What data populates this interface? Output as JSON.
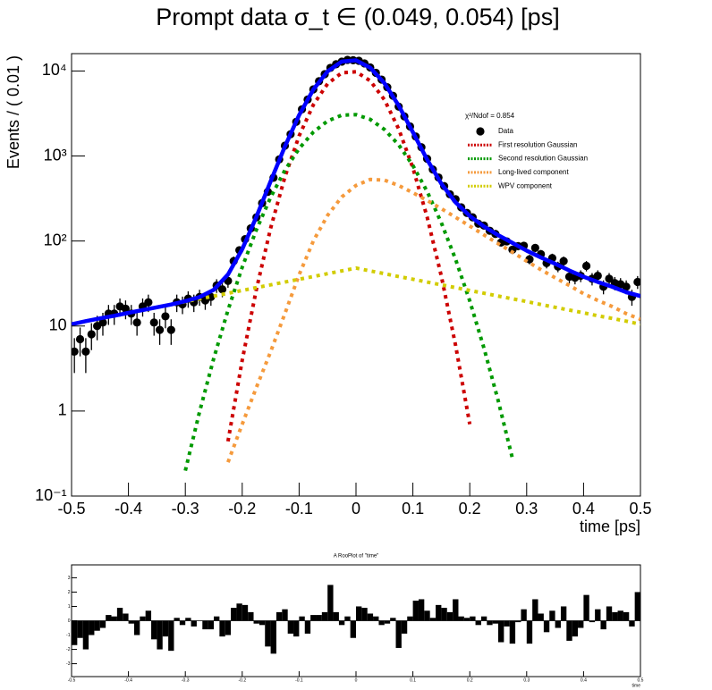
{
  "chart_data": [
    {
      "type": "line",
      "title": "Prompt data σ_t ∈ (0.049, 0.054) [ps]",
      "x_label": "time [ps]",
      "y_label": "Events / ( 0.01 )",
      "annotation": "χ²/Ndof = 0.854",
      "legend": "upper right",
      "log_y": true,
      "xlim": [
        -0.5,
        0.5
      ],
      "ylim": [
        0.1,
        16000
      ],
      "xticks": [
        -0.5,
        -0.4,
        -0.3,
        -0.2,
        -0.1,
        0,
        0.1,
        0.2,
        0.3,
        0.4,
        0.5
      ],
      "yticks": [
        {
          "value": 0.1,
          "label": "10⁻¹"
        },
        1,
        10,
        {
          "value": 100,
          "label": "10²"
        },
        {
          "value": 1000,
          "label": "10³"
        },
        {
          "value": 10000,
          "label": "10⁴"
        }
      ],
      "series": [
        {
          "name": "Data",
          "style": "points",
          "color": "#000000",
          "x": [
            -0.495,
            -0.485,
            -0.475,
            -0.465,
            -0.455,
            -0.445,
            -0.435,
            -0.425,
            -0.415,
            -0.405,
            -0.395,
            -0.385,
            -0.375,
            -0.365,
            -0.355,
            -0.345,
            -0.335,
            -0.325,
            -0.315,
            -0.305,
            -0.295,
            -0.285,
            -0.275,
            -0.265,
            -0.255,
            -0.245,
            -0.235,
            -0.225,
            -0.215,
            -0.205,
            -0.195,
            -0.185,
            -0.175,
            -0.165,
            -0.155,
            -0.145,
            -0.135,
            -0.125,
            -0.115,
            -0.105,
            -0.095,
            -0.085,
            -0.075,
            -0.065,
            -0.055,
            -0.045,
            -0.035,
            -0.025,
            -0.015,
            -0.005,
            0.005,
            0.015,
            0.025,
            0.035,
            0.045,
            0.055,
            0.065,
            0.075,
            0.085,
            0.095,
            0.105,
            0.115,
            0.125,
            0.135,
            0.145,
            0.155,
            0.165,
            0.175,
            0.185,
            0.195,
            0.205,
            0.215,
            0.225,
            0.235,
            0.245,
            0.255,
            0.265,
            0.275,
            0.285,
            0.295,
            0.305,
            0.315,
            0.325,
            0.335,
            0.345,
            0.355,
            0.365,
            0.375,
            0.385,
            0.395,
            0.405,
            0.415,
            0.425,
            0.435,
            0.445,
            0.455,
            0.465,
            0.475,
            0.485,
            0.495
          ],
          "values": [
            5,
            7,
            5,
            8,
            10,
            11,
            14,
            14,
            17,
            16,
            14,
            11,
            17,
            19,
            11,
            9,
            13,
            9,
            19,
            18,
            21,
            19,
            22,
            20,
            22,
            30,
            27,
            34,
            58,
            78,
            105,
            141,
            190,
            279,
            379,
            555,
            912,
            1322,
            1803,
            2523,
            3542,
            4618,
            6078,
            7582,
            9169,
            10880,
            11996,
            12882,
            13498,
            13375,
            13186,
            12272,
            10991,
            9503,
            7918,
            6442,
            5108,
            3807,
            2919,
            2223,
            1693,
            1269,
            929,
            694,
            559,
            442,
            355,
            310,
            249,
            214,
            190,
            160,
            152,
            132,
            121,
            96,
            99,
            79,
            87,
            88,
            61,
            83,
            70,
            55,
            63,
            50,
            58,
            38,
            37,
            39,
            51,
            36,
            39,
            29,
            36,
            32,
            31,
            29,
            22,
            33
          ],
          "errors": [
            2.2,
            2.6,
            2.2,
            2.8,
            3.2,
            3.3,
            3.7,
            3.7,
            4.1,
            4.0,
            3.7,
            3.3,
            4.1,
            4.4,
            3.3,
            3.0,
            3.6,
            3.0,
            4.4,
            4.2,
            4.6,
            4.4,
            4.7,
            4.5,
            4.7,
            5.5,
            5.2,
            5.8,
            7.6,
            8.8,
            10.2,
            11.9,
            13.8,
            16.7,
            19.5,
            23.6,
            30.2,
            36.4,
            42.5,
            50.2,
            59.5,
            68.0,
            78.0,
            87.1,
            95.8,
            104.3,
            109.5,
            113.5,
            116.2,
            115.7,
            114.8,
            110.8,
            104.8,
            97.5,
            89.0,
            80.3,
            71.5,
            61.7,
            54.0,
            47.1,
            41.1,
            35.6,
            30.5,
            26.3,
            23.6,
            21.0,
            18.8,
            17.6,
            15.8,
            14.6,
            13.8,
            12.6,
            12.3,
            11.5,
            11.0,
            9.8,
            9.9,
            8.9,
            9.3,
            9.4,
            7.8,
            9.1,
            8.4,
            7.4,
            7.9,
            7.1,
            7.6,
            6.2,
            6.1,
            6.2,
            7.1,
            6.0,
            6.2,
            5.4,
            6.0,
            5.7,
            5.6,
            5.4,
            4.7,
            5.7
          ]
        },
        {
          "name": "First resolution Gaussian",
          "style": "dotted",
          "color": "#cc0000",
          "x": [
            -0.5,
            -0.475,
            -0.45,
            -0.425,
            -0.4,
            -0.375,
            -0.35,
            -0.325,
            -0.3,
            -0.275,
            -0.25,
            -0.225,
            -0.2,
            -0.175,
            -0.15,
            -0.125,
            -0.1,
            -0.075,
            -0.05,
            -0.025,
            0,
            0.025,
            0.05,
            0.075,
            0.1,
            0.125,
            0.15,
            0.175,
            0.2,
            0.225,
            0.25,
            0.275,
            0.3,
            0.325,
            0.35,
            0.375,
            0.4,
            0.425,
            0.45,
            0.475,
            0.5
          ],
          "values": [
            null,
            null,
            null,
            null,
            null,
            null,
            null,
            null,
            null,
            null,
            null,
            0.44,
            3.96,
            27.2,
            142,
            567,
            1724,
            4000,
            7070,
            9520,
            9790,
            7670,
            4580,
            2085,
            724,
            192,
            38.6,
            5.95,
            0.7,
            null,
            null,
            null,
            null,
            null,
            null,
            null,
            null,
            null,
            null,
            null,
            null
          ]
        },
        {
          "name": "Second resolution Gaussian",
          "style": "dotted",
          "color": "#009900",
          "x": [
            -0.5,
            -0.475,
            -0.45,
            -0.425,
            -0.4,
            -0.375,
            -0.35,
            -0.325,
            -0.3,
            -0.275,
            -0.25,
            -0.225,
            -0.2,
            -0.175,
            -0.15,
            -0.125,
            -0.1,
            -0.075,
            -0.05,
            -0.025,
            0,
            0.025,
            0.05,
            0.075,
            0.1,
            0.125,
            0.15,
            0.175,
            0.2,
            0.225,
            0.25,
            0.275,
            0.3,
            0.325,
            0.35,
            0.375,
            0.4,
            0.425,
            0.45,
            0.475,
            0.5
          ],
          "values": [
            null,
            null,
            null,
            null,
            null,
            null,
            null,
            null,
            0.199,
            0.98,
            4.17,
            15.4,
            49.2,
            136,
            327,
            679,
            1223,
            1909,
            2580,
            3021,
            3065,
            2694,
            2051,
            1353,
            773,
            383,
            164,
            61,
            19.7,
            5.48,
            1.32,
            0.277,
            null,
            null,
            null,
            null,
            null,
            null,
            null,
            null,
            null
          ]
        },
        {
          "name": "Long-lived component",
          "style": "dotted",
          "color": "#f59a3c",
          "x": [
            -0.5,
            -0.475,
            -0.45,
            -0.425,
            -0.4,
            -0.375,
            -0.35,
            -0.325,
            -0.3,
            -0.275,
            -0.25,
            -0.225,
            -0.2,
            -0.175,
            -0.15,
            -0.125,
            -0.1,
            -0.075,
            -0.05,
            -0.025,
            0,
            0.025,
            0.05,
            0.075,
            0.1,
            0.125,
            0.15,
            0.175,
            0.2,
            0.225,
            0.25,
            0.275,
            0.3,
            0.325,
            0.35,
            0.375,
            0.4,
            0.425,
            0.45,
            0.475,
            0.5
          ],
          "values": [
            null,
            null,
            null,
            null,
            null,
            null,
            null,
            null,
            null,
            null,
            null,
            0.25,
            0.7,
            1.9,
            5,
            14,
            40,
            100,
            200,
            330,
            450,
            530,
            520,
            450,
            370,
            300,
            240,
            190,
            150,
            118,
            93,
            74,
            58,
            46,
            37,
            30,
            24,
            20,
            17,
            14,
            12
          ]
        },
        {
          "name": "WPV component",
          "style": "dotted",
          "color": "#d2cc00",
          "x": [
            -0.5,
            -0.475,
            -0.45,
            -0.425,
            -0.4,
            -0.375,
            -0.35,
            -0.325,
            -0.3,
            -0.275,
            -0.25,
            -0.225,
            -0.2,
            -0.175,
            -0.15,
            -0.125,
            -0.1,
            -0.075,
            -0.05,
            -0.025,
            0,
            0.025,
            0.05,
            0.075,
            0.1,
            0.125,
            0.15,
            0.175,
            0.2,
            0.225,
            0.25,
            0.275,
            0.3,
            0.325,
            0.35,
            0.375,
            0.4,
            0.425,
            0.45,
            0.475,
            0.5
          ],
          "values": [
            10.5,
            11.4,
            12.3,
            13.2,
            14.3,
            15.4,
            16.6,
            17.9,
            19.4,
            20.9,
            22.5,
            24.3,
            26.2,
            28.3,
            30.5,
            32.9,
            35.5,
            38.2,
            41.3,
            44.5,
            48,
            44.5,
            41.3,
            38.2,
            35.5,
            32.9,
            30.5,
            28.3,
            26.2,
            24.3,
            22.5,
            20.9,
            19.4,
            17.9,
            16.6,
            15.4,
            14.3,
            13.2,
            12.3,
            11.4,
            10.5
          ]
        },
        {
          "style": "solid",
          "color": "#0000ff",
          "x": [
            -0.5,
            -0.475,
            -0.45,
            -0.425,
            -0.4,
            -0.375,
            -0.35,
            -0.325,
            -0.3,
            -0.275,
            -0.25,
            -0.225,
            -0.2,
            -0.175,
            -0.15,
            -0.125,
            -0.1,
            -0.075,
            -0.05,
            -0.025,
            0,
            0.025,
            0.05,
            0.075,
            0.1,
            0.125,
            0.15,
            0.175,
            0.2,
            0.225,
            0.25,
            0.275,
            0.3,
            0.325,
            0.35,
            0.375,
            0.4,
            0.425,
            0.45,
            0.475,
            0.5
          ],
          "values": [
            10.5,
            11.4,
            12.3,
            13.2,
            14.3,
            15.4,
            16.6,
            17.9,
            19.6,
            21.9,
            26.7,
            40.4,
            80.1,
            193,
            505,
            1293,
            3023,
            6047,
            9891,
            12916,
            13353,
            10939,
            7192,
            3926,
            1903,
            908,
            473,
            285,
            197,
            148,
            117,
            95,
            77,
            64,
            54,
            45,
            38,
            33,
            29,
            25,
            22.5
          ]
        }
      ]
    },
    {
      "type": "bar",
      "title": "A RooPlot of \"time\"",
      "x_label": "time",
      "xlim": [
        -0.5,
        0.5
      ],
      "ylim": [
        -3.9,
        3.9
      ],
      "xticks": [
        -0.5,
        -0.4,
        -0.3,
        -0.2,
        -0.1,
        0,
        0.1,
        0.2,
        0.3,
        0.4,
        0.5
      ],
      "yticks": [
        -3,
        -2,
        -1,
        0,
        1,
        2,
        3
      ],
      "color": "#000000",
      "x": [
        -0.495,
        -0.485,
        -0.475,
        -0.465,
        -0.455,
        -0.445,
        -0.435,
        -0.425,
        -0.415,
        -0.405,
        -0.395,
        -0.385,
        -0.375,
        -0.365,
        -0.355,
        -0.345,
        -0.335,
        -0.325,
        -0.315,
        -0.305,
        -0.295,
        -0.285,
        -0.275,
        -0.265,
        -0.255,
        -0.245,
        -0.235,
        -0.225,
        -0.215,
        -0.205,
        -0.195,
        -0.185,
        -0.175,
        -0.165,
        -0.155,
        -0.145,
        -0.135,
        -0.125,
        -0.115,
        -0.105,
        -0.095,
        -0.085,
        -0.075,
        -0.065,
        -0.055,
        -0.045,
        -0.035,
        -0.025,
        -0.015,
        -0.005,
        0.005,
        0.015,
        0.025,
        0.035,
        0.045,
        0.055,
        0.065,
        0.075,
        0.085,
        0.095,
        0.105,
        0.115,
        0.125,
        0.135,
        0.145,
        0.155,
        0.165,
        0.175,
        0.185,
        0.195,
        0.205,
        0.215,
        0.225,
        0.235,
        0.245,
        0.255,
        0.265,
        0.275,
        0.285,
        0.295,
        0.305,
        0.315,
        0.325,
        0.335,
        0.345,
        0.355,
        0.365,
        0.375,
        0.385,
        0.395,
        0.405,
        0.415,
        0.425,
        0.435,
        0.445,
        0.455,
        0.465,
        0.475,
        0.485,
        0.495
      ],
      "values": [
        -1.7,
        -1.2,
        -2.0,
        -1.0,
        -0.7,
        -0.5,
        0.4,
        0.3,
        0.9,
        0.5,
        -0.2,
        -1.0,
        0.3,
        0.7,
        -1.3,
        -2.0,
        -1.1,
        -2.1,
        0.2,
        -0.3,
        0.2,
        -0.4,
        0.0,
        -0.6,
        -0.6,
        0.3,
        -1.1,
        -1.0,
        0.9,
        1.2,
        1.1,
        0.6,
        -0.2,
        -0.3,
        -1.8,
        -2.3,
        0.6,
        0.8,
        -0.9,
        -1.1,
        0.3,
        -0.9,
        0.4,
        0.4,
        0.6,
        2.5,
        0.6,
        -0.3,
        0.3,
        -1.2,
        1.0,
        0.9,
        0.5,
        0.3,
        -0.3,
        -0.2,
        0.2,
        -1.9,
        -0.9,
        0.3,
        1.4,
        1.5,
        0.7,
        0.2,
        1.1,
        0.9,
        0.6,
        1.5,
        0.3,
        0.2,
        0.3,
        -0.3,
        0.3,
        -0.3,
        -0.2,
        -1.5,
        -0.4,
        -1.6,
        -0.1,
        0.8,
        -1.6,
        1.5,
        0.5,
        -0.8,
        0.7,
        -0.5,
        1.0,
        -1.4,
        -1.1,
        -0.5,
        1.8,
        -0.1,
        0.8,
        -0.6,
        1.0,
        0.6,
        0.7,
        0.6,
        -0.4,
        2.0
      ]
    }
  ]
}
